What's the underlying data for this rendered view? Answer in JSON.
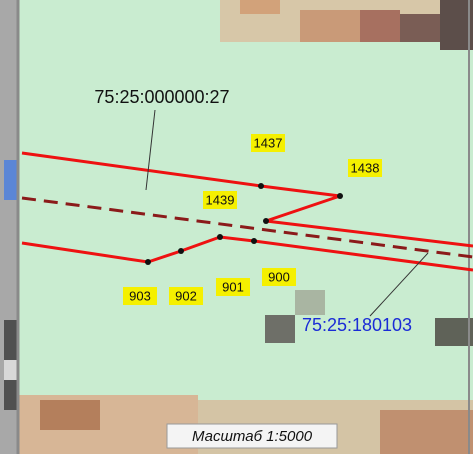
{
  "map": {
    "parcels": [
      "75:25:000000:27",
      "75:25:180103"
    ],
    "points": [
      "1437",
      "1438",
      "1439",
      "903",
      "902",
      "901",
      "900"
    ],
    "scale": "Масштаб 1:5000"
  }
}
